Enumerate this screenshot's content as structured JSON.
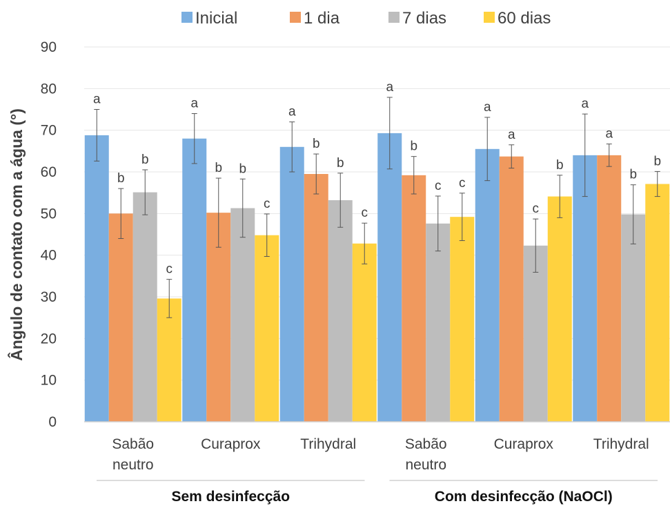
{
  "chart_data": {
    "type": "bar",
    "title": "",
    "ylabel": "Ângulo de contato com a água (°)",
    "xlabel": "",
    "ylim": [
      0,
      90
    ],
    "yticks": [
      0,
      10,
      20,
      30,
      40,
      50,
      60,
      70,
      80,
      90
    ],
    "grid": true,
    "legend_position": "top",
    "categories": [
      "Sabão neutro",
      "Curaprox",
      "Trihydral",
      "Sabão neutro",
      "Curaprox",
      "Trihydral"
    ],
    "category_lines": [
      [
        "Sabão",
        "neutro"
      ],
      [
        "Curaprox"
      ],
      [
        "Trihydral"
      ],
      [
        "Sabão",
        "neutro"
      ],
      [
        "Curaprox"
      ],
      [
        "Trihydral"
      ]
    ],
    "groups": [
      {
        "label": "Sem desinfecção",
        "categories": [
          0,
          1,
          2
        ]
      },
      {
        "label": "Com desinfecção (NaOCl)",
        "categories": [
          3,
          4,
          5
        ]
      }
    ],
    "series": [
      {
        "name": "Inicial",
        "color": "#7aaee0",
        "values": [
          68.8,
          68.0,
          66.0,
          69.3,
          65.5,
          64.0
        ],
        "errors": [
          6.2,
          6.0,
          6.0,
          8.6,
          7.6,
          9.9
        ],
        "letters": [
          "a",
          "a",
          "a",
          "a",
          "a",
          "a"
        ]
      },
      {
        "name": "1 dia",
        "color": "#f0995e",
        "values": [
          50.0,
          50.2,
          59.5,
          59.2,
          63.7,
          64.0
        ],
        "errors": [
          6.0,
          8.3,
          4.8,
          4.5,
          2.8,
          2.7
        ],
        "letters": [
          "b",
          "b",
          "b",
          "b",
          "a",
          "a"
        ]
      },
      {
        "name": "7 dias",
        "color": "#bdbdbd",
        "values": [
          55.1,
          51.3,
          53.2,
          47.6,
          42.3,
          49.8
        ],
        "errors": [
          5.4,
          7.0,
          6.5,
          6.6,
          6.4,
          7.1
        ],
        "letters": [
          "b",
          "b",
          "b",
          "c",
          "c",
          "b"
        ]
      },
      {
        "name": "60 dias",
        "color": "#ffd23f",
        "values": [
          29.6,
          44.8,
          42.8,
          49.2,
          54.1,
          57.1
        ],
        "errors": [
          4.6,
          5.1,
          4.9,
          5.7,
          5.1,
          3.0
        ],
        "letters": [
          "c",
          "c",
          "c",
          "c",
          "b",
          "b"
        ]
      }
    ]
  }
}
